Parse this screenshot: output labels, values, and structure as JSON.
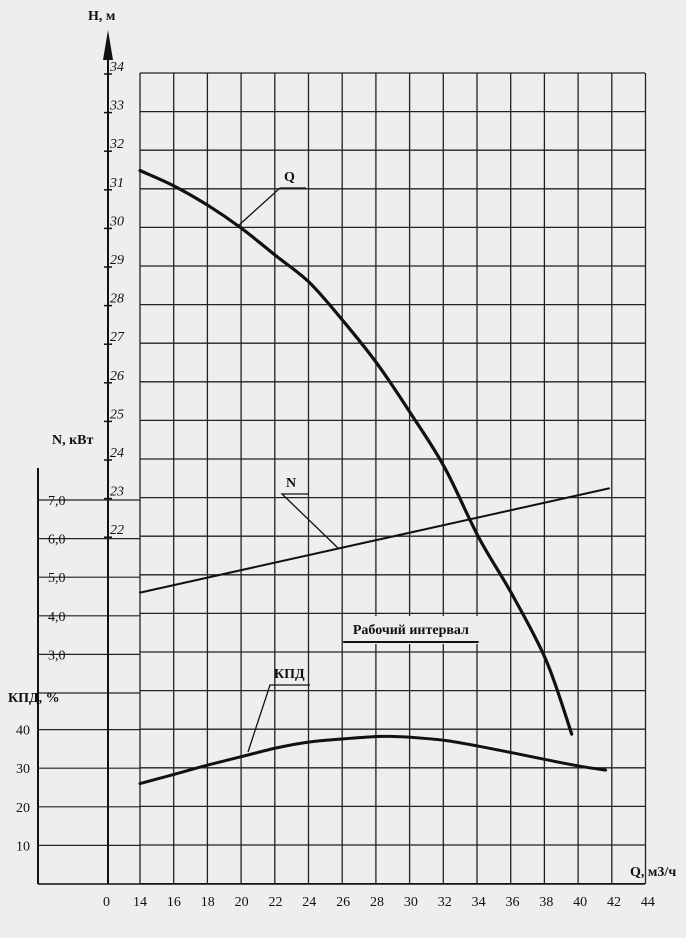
{
  "chart_data": {
    "type": "line",
    "x_axis": {
      "label": "Q, м3/ч",
      "ticks": [
        14,
        16,
        18,
        20,
        22,
        24,
        26,
        28,
        30,
        32,
        34,
        36,
        38,
        40,
        42,
        44
      ],
      "range": [
        14,
        44
      ],
      "origin_label": "0"
    },
    "h_axis": {
      "label": "H, м",
      "ticks": [
        22,
        23,
        24,
        25,
        26,
        27,
        28,
        29,
        30,
        31,
        32,
        33,
        34
      ],
      "range": [
        22,
        34
      ]
    },
    "n_axis": {
      "label": "N, кВт",
      "ticks": [
        "3,0",
        "4,0",
        "5,0",
        "6,0",
        "7,0"
      ],
      "tick_values": [
        3,
        4,
        5,
        6,
        7
      ],
      "range": [
        2,
        8
      ]
    },
    "eff_axis": {
      "label": "КПД, %",
      "ticks": [
        10,
        20,
        30,
        40
      ],
      "range": [
        0,
        40
      ]
    },
    "grid": true,
    "series": [
      {
        "name": "Q",
        "axis": "h",
        "x": [
          14,
          16,
          18,
          20,
          22,
          24,
          26,
          28,
          30,
          32,
          34,
          36,
          38,
          39.5
        ],
        "y": [
          31.5,
          31.1,
          30.6,
          30.0,
          29.3,
          28.6,
          27.6,
          26.5,
          25.2,
          23.8,
          22.0,
          20.5,
          18.8,
          16.9
        ]
      },
      {
        "name": "N",
        "axis": "n",
        "x": [
          14,
          41.7
        ],
        "y": [
          4.6,
          7.3
        ]
      },
      {
        "name": "КПД",
        "axis": "eff",
        "x": [
          14,
          16,
          18,
          20,
          22,
          24,
          26,
          28,
          29,
          30,
          32,
          34,
          36,
          38,
          40,
          41.5
        ],
        "y": [
          26,
          28.4,
          30.8,
          33,
          35.2,
          36.8,
          37.6,
          38.2,
          38.2,
          38,
          37.2,
          35.7,
          34,
          32.2,
          30.5,
          29.5
        ]
      }
    ],
    "annotations": [
      {
        "text": "Рабочий интервал",
        "x_range": [
          26,
          34
        ]
      }
    ]
  }
}
